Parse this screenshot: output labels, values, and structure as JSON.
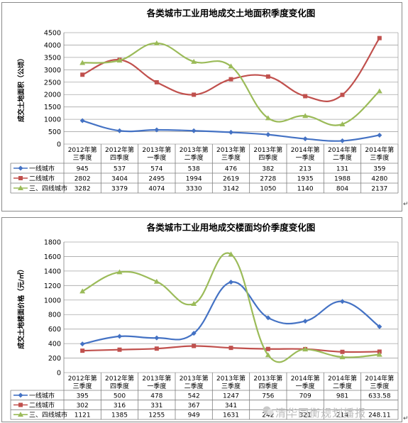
{
  "watermark": "清华同衡规划播报",
  "chart_data": [
    {
      "type": "line",
      "title": "各类城市工业用地成交土地面积季度变化图",
      "ylabel": "成交土地面积（公顷）",
      "xlabel": "",
      "ylim": [
        0,
        4500
      ],
      "yticks": [
        0,
        500,
        1000,
        1500,
        2000,
        2500,
        3000,
        3500,
        4000,
        4500
      ],
      "grid": true,
      "categories": [
        [
          "2012年第",
          "三季度"
        ],
        [
          "2012年第",
          "四季度"
        ],
        [
          "2013年第",
          "一季度"
        ],
        [
          "2013年第",
          "二季度"
        ],
        [
          "2013年第",
          "三季度"
        ],
        [
          "2013年第",
          "四季度"
        ],
        [
          "2014年第",
          "一季度"
        ],
        [
          "2014年第",
          "二季度"
        ],
        [
          "2014年第",
          "三季度"
        ]
      ],
      "series": [
        {
          "name": "一线城市",
          "color": "#4472c4",
          "marker": "diamond",
          "values": [
            945,
            537,
            574,
            538,
            476,
            382,
            213,
            131,
            359
          ],
          "labels": [
            "945",
            "537",
            "574",
            "538",
            "476",
            "382",
            "213",
            "131",
            "359"
          ]
        },
        {
          "name": "二线城市",
          "color": "#c0504d",
          "marker": "square",
          "values": [
            2802,
            3404,
            2495,
            1994,
            2619,
            2728,
            1935,
            1988,
            4280
          ],
          "labels": [
            "2802",
            "3404",
            "2495",
            "1994",
            "2619",
            "2728",
            "1935",
            "1988",
            "4280"
          ]
        },
        {
          "name": "三、四线城市",
          "color": "#9bbb59",
          "marker": "triangle",
          "values": [
            3282,
            3379,
            4074,
            3330,
            3142,
            1050,
            1140,
            804,
            2137
          ],
          "labels": [
            "3282",
            "3379",
            "4074",
            "3330",
            "3142",
            "1050",
            "1140",
            "804",
            "2137"
          ]
        }
      ]
    },
    {
      "type": "line",
      "title": "各类城市工业用地成交楼面均价季度变化图",
      "ylabel": "成交土地楼面价格（元/㎡）",
      "xlabel": "",
      "ylim": [
        0,
        1800
      ],
      "yticks": [
        0,
        200,
        400,
        600,
        800,
        1000,
        1200,
        1400,
        1600,
        1800
      ],
      "grid": true,
      "categories": [
        [
          "2012年第",
          "三季度"
        ],
        [
          "2012年第",
          "四季度"
        ],
        [
          "2013年第",
          "一季度"
        ],
        [
          "2013年第",
          "二季度"
        ],
        [
          "2013年第",
          "三季度"
        ],
        [
          "2013年第",
          "四季度"
        ],
        [
          "2014年第",
          "一季度"
        ],
        [
          "2014年第",
          "二季度"
        ],
        [
          "2014年第",
          "三季度"
        ]
      ],
      "series": [
        {
          "name": "一线城市",
          "color": "#4472c4",
          "marker": "diamond",
          "values": [
            395,
            500,
            478,
            542,
            1247,
            756,
            709,
            981,
            633.58
          ],
          "labels": [
            "395",
            "500",
            "478",
            "542",
            "1247",
            "756",
            "709",
            "981",
            "633.58"
          ]
        },
        {
          "name": "二线城市",
          "color": "#c0504d",
          "marker": "square",
          "values": [
            302,
            316,
            331,
            367,
            341,
            326,
            324,
            286,
            289
          ],
          "labels": [
            "302",
            "316",
            "331",
            "367",
            "341",
            "",
            "",
            "",
            ""
          ]
        },
        {
          "name": "三、四线城市",
          "color": "#9bbb59",
          "marker": "triangle",
          "values": [
            1121,
            1385,
            1255,
            949,
            1631,
            242,
            321,
            214,
            248.11
          ],
          "labels": [
            "1121",
            "1385",
            "1255",
            "949",
            "1631",
            "242",
            "321",
            "214",
            "248.11"
          ]
        }
      ]
    }
  ]
}
